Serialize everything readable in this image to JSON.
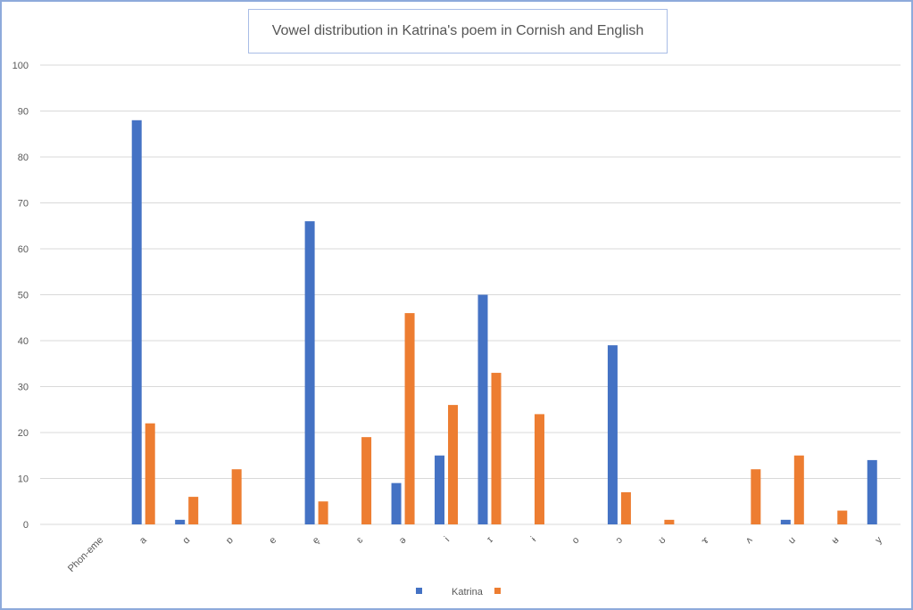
{
  "chart_data": {
    "type": "bar",
    "title": "Vowel distribution in Katrina's poem in Cornish and English",
    "xlabel": "",
    "ylabel": "",
    "ylim": [
      0,
      100
    ],
    "yticks": [
      0,
      10,
      20,
      30,
      40,
      50,
      60,
      70,
      80,
      90,
      100
    ],
    "grid": true,
    "legend_position": "bottom",
    "categories": [
      "Phon-eme",
      "a",
      "ɑ",
      "ɒ",
      "e",
      "e̞",
      "ɛ",
      "ə",
      "i",
      "ɪ",
      "ɨ",
      "o",
      "ɔ",
      "ʊ",
      "ɤ",
      "ʌ",
      "u",
      "ʉ",
      "y"
    ],
    "series": [
      {
        "name": "Katrina",
        "color": "#4472c4",
        "values": [
          null,
          88,
          1,
          0,
          0,
          66,
          0,
          9,
          15,
          50,
          0,
          0,
          39,
          0,
          0,
          0,
          1,
          0,
          14
        ]
      },
      {
        "name": "",
        "color": "#ed7d31",
        "values": [
          null,
          22,
          6,
          12,
          0,
          5,
          19,
          46,
          26,
          33,
          24,
          0,
          7,
          1,
          0,
          12,
          15,
          3,
          0
        ]
      }
    ]
  }
}
